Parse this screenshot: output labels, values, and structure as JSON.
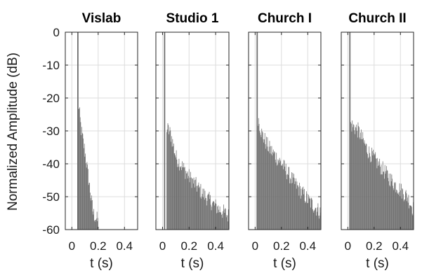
{
  "chart_data": {
    "type": "bar",
    "ylabel": "Normalized Amplitude (dB)",
    "ylim": [
      -60,
      0
    ],
    "yticks": [
      0,
      -10,
      -20,
      -30,
      -40,
      -50,
      -60
    ],
    "ytick_labels": [
      "0",
      "-10",
      "-20",
      "-30",
      "-40",
      "-50",
      "-60"
    ],
    "xlabel": "t (s)",
    "grid": true,
    "bar_color": "#6e6e6e",
    "grid_color": "#dcdcdc",
    "panels": [
      {
        "title": "Vislab",
        "xlim": [
          -0.05,
          0.5
        ],
        "xticks": [
          0,
          0.2,
          0.4
        ],
        "xtick_labels": [
          "0",
          "0.2",
          "0.4"
        ],
        "direct_sound": {
          "t": 0.045,
          "db": 0
        },
        "envelope": [
          {
            "t": 0.045,
            "db": -21
          },
          {
            "t": 0.07,
            "db": -30
          },
          {
            "t": 0.1,
            "db": -37
          },
          {
            "t": 0.14,
            "db": -49
          },
          {
            "t": 0.16,
            "db": -55
          },
          {
            "t": 0.19,
            "db": -57
          },
          {
            "t": 0.2,
            "db": -58
          }
        ]
      },
      {
        "title": "Studio 1",
        "xlim": [
          -0.05,
          0.5
        ],
        "xticks": [
          0,
          0.2,
          0.4
        ],
        "xtick_labels": [
          "0",
          "0.2",
          "0.4"
        ],
        "direct_sound": {
          "t": 0.015,
          "db": 0
        },
        "envelope": [
          {
            "t": 0.03,
            "db": -29
          },
          {
            "t": 0.06,
            "db": -31
          },
          {
            "t": 0.1,
            "db": -38
          },
          {
            "t": 0.2,
            "db": -44
          },
          {
            "t": 0.3,
            "db": -49
          },
          {
            "t": 0.4,
            "db": -53
          },
          {
            "t": 0.5,
            "db": -56
          }
        ]
      },
      {
        "title": "Church I",
        "xlim": [
          -0.05,
          0.5
        ],
        "xticks": [
          0,
          0.2,
          0.4
        ],
        "xtick_labels": [
          "0",
          "0.2",
          "0.4"
        ],
        "direct_sound": {
          "t": 0.015,
          "db": 0
        },
        "envelope": [
          {
            "t": 0.02,
            "db": -26
          },
          {
            "t": 0.05,
            "db": -31
          },
          {
            "t": 0.1,
            "db": -35
          },
          {
            "t": 0.2,
            "db": -40
          },
          {
            "t": 0.3,
            "db": -46
          },
          {
            "t": 0.4,
            "db": -51
          },
          {
            "t": 0.5,
            "db": -55
          }
        ]
      },
      {
        "title": "Church II",
        "xlim": [
          -0.05,
          0.5
        ],
        "xticks": [
          0,
          0.2,
          0.4
        ],
        "xtick_labels": [
          "0",
          "0.2",
          "0.4"
        ],
        "direct_sound": {
          "t": 0.015,
          "db": 0
        },
        "envelope": [
          {
            "t": 0.02,
            "db": -28
          },
          {
            "t": 0.08,
            "db": -30
          },
          {
            "t": 0.15,
            "db": -36
          },
          {
            "t": 0.25,
            "db": -41
          },
          {
            "t": 0.35,
            "db": -46
          },
          {
            "t": 0.45,
            "db": -50
          },
          {
            "t": 0.5,
            "db": -54
          }
        ]
      }
    ]
  }
}
